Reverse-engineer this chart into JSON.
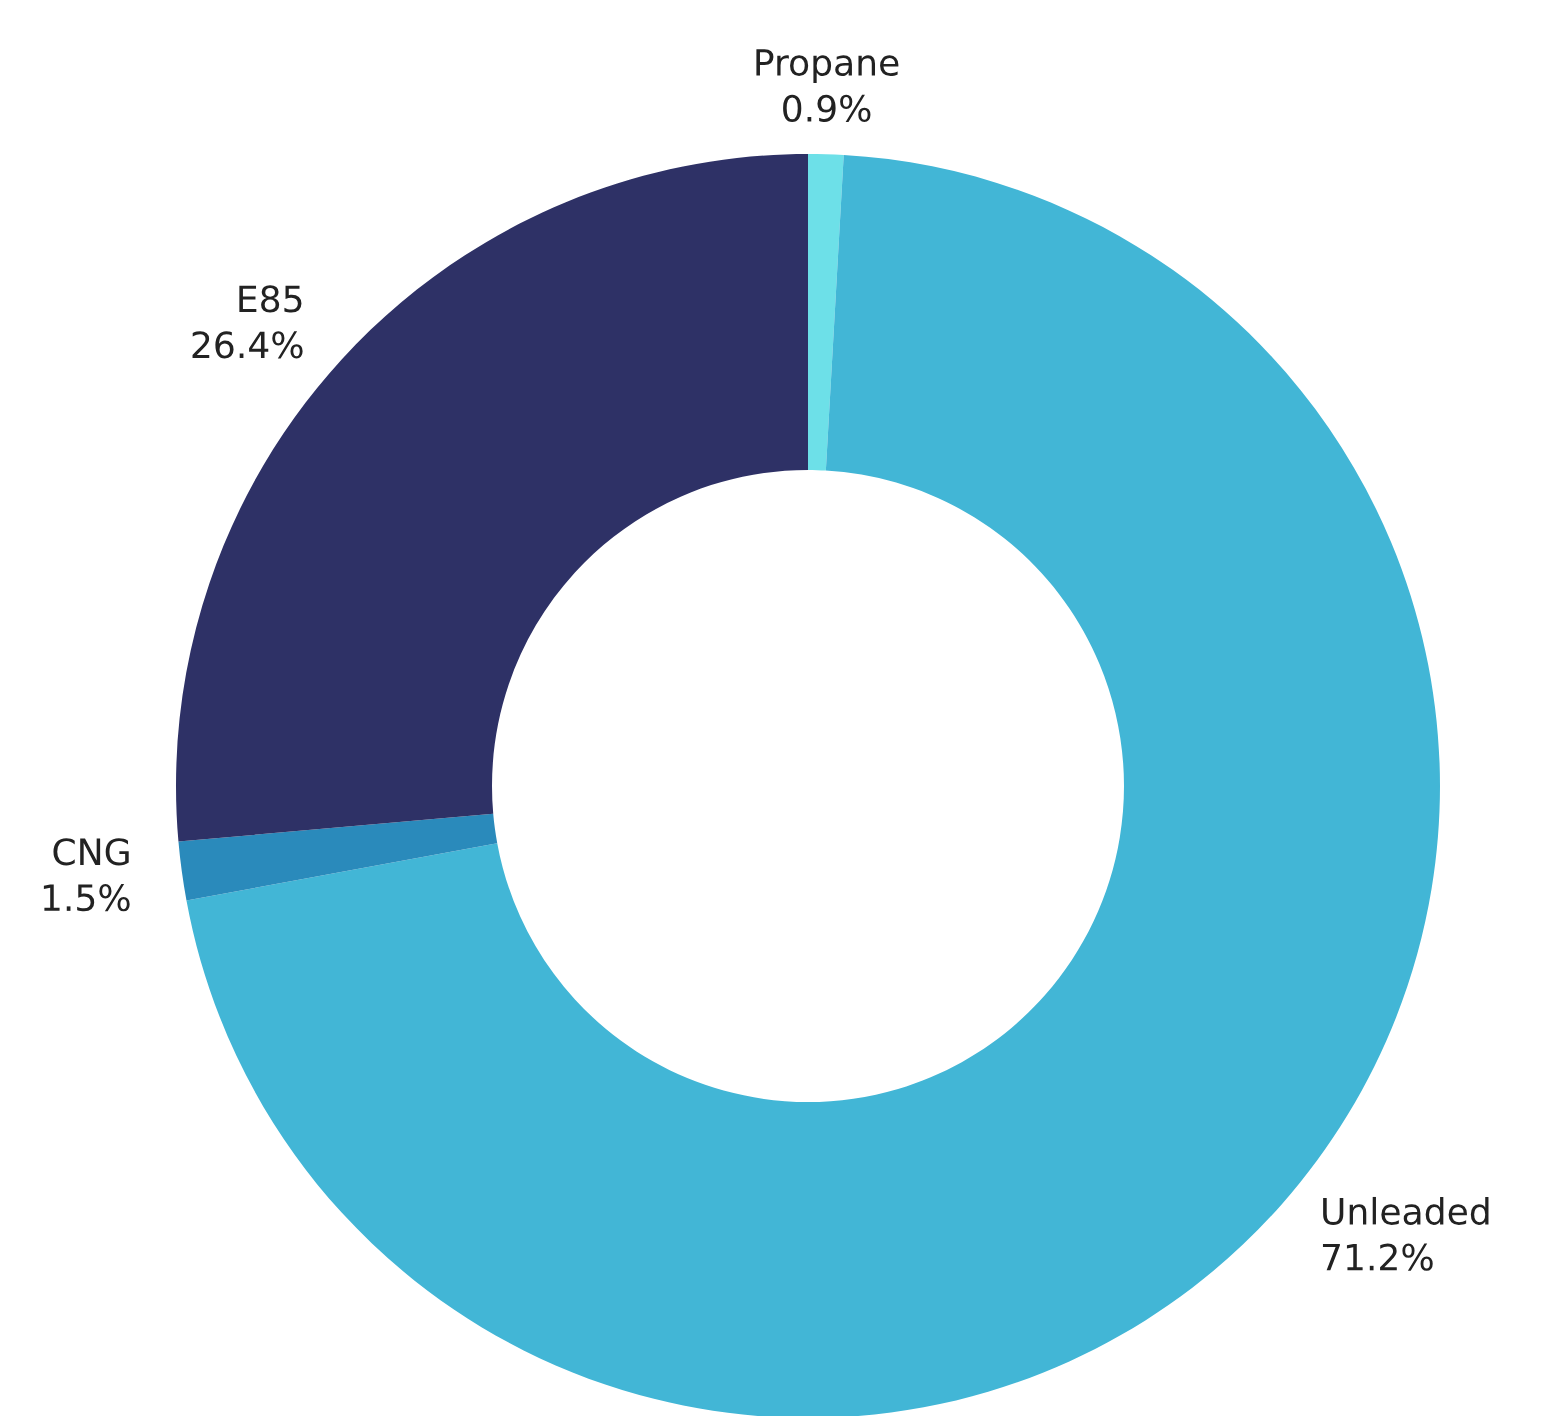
{
  "chart_data": {
    "type": "donut",
    "categories": [
      "Propane",
      "Unleaded",
      "CNG",
      "E85"
    ],
    "values": [
      0.9,
      71.2,
      1.5,
      26.4
    ],
    "value_labels": [
      "0.9%",
      "71.2%",
      "1.5%",
      "26.4%"
    ],
    "colors": [
      "#6de0e8",
      "#42b6d6",
      "#2a8abb",
      "#2e3166"
    ],
    "legend": false
  }
}
